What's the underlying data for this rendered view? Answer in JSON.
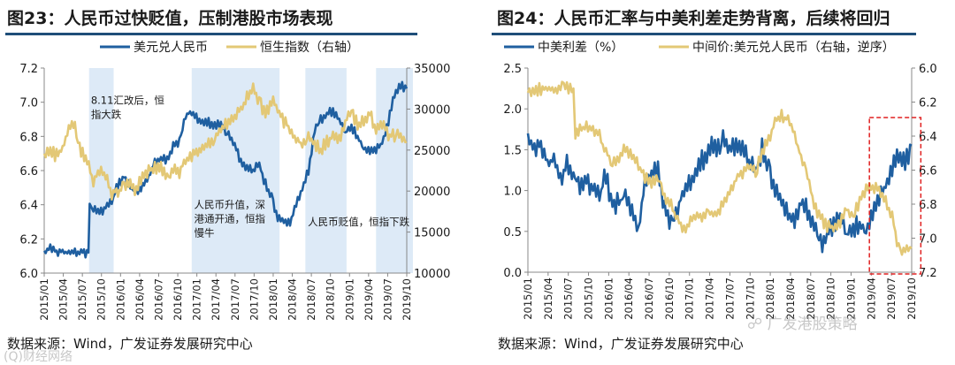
{
  "left": {
    "title": "图23：人民币过快贬值，压制港股市场表现",
    "legend": [
      "美元兑人民币",
      "恒生指数（右轴）"
    ],
    "source": "数据来源：Wind，广发证券发展研究中心",
    "chart_data": {
      "type": "line",
      "title": "人民币过快贬值，压制港股市场表现",
      "colors": {
        "usdcny": "#1f5fa0",
        "hsi": "#e3c876",
        "shade": "#ddeaf7"
      },
      "x_tick_labels": [
        "2015/01",
        "2015/04",
        "2015/07",
        "2015/10",
        "2016/01",
        "2016/04",
        "2016/07",
        "2016/10",
        "2017/01",
        "2017/04",
        "2017/07",
        "2017/10",
        "2018/01",
        "2018/04",
        "2018/07",
        "2018/10",
        "2019/01",
        "2019/04",
        "2019/07",
        "2019/10"
      ],
      "y_left": {
        "min": 6.0,
        "max": 7.2,
        "ticks": [
          "6.0",
          "6.2",
          "6.4",
          "6.6",
          "6.8",
          "7.0",
          "7.2"
        ]
      },
      "y_right": {
        "min": 10000,
        "max": 35000,
        "ticks": [
          "10000",
          "15000",
          "20000",
          "25000",
          "30000",
          "35000"
        ]
      },
      "shaded_periods": [
        [
          7.3,
          11.3
        ],
        [
          24.0,
          38.3
        ],
        [
          42.5,
          49.2
        ],
        [
          54.0,
          60.0
        ]
      ],
      "annotations": [
        {
          "text": [
            "8.11汇改后，恒",
            "指大跌"
          ],
          "t": 7.6,
          "y": 6.99
        },
        {
          "text": [
            "人民币升值，深",
            "港通开通，恒指",
            "慢牛"
          ],
          "t": 24.4,
          "y": 6.38
        },
        {
          "text": [
            "人民币贬值，恒指下跌"
          ],
          "t": 42.9,
          "y": 6.28
        }
      ],
      "series": [
        {
          "name": "美元兑人民币",
          "axis": "left",
          "points": [
            [
              0,
              6.13
            ],
            [
              1,
              6.14
            ],
            [
              2,
              6.13
            ],
            [
              3,
              6.12
            ],
            [
              4,
              6.12
            ],
            [
              5,
              6.13
            ],
            [
              6,
              6.12
            ],
            [
              7.2,
              6.12
            ],
            [
              7.4,
              6.39
            ],
            [
              8,
              6.38
            ],
            [
              9,
              6.36
            ],
            [
              10,
              6.38
            ],
            [
              11,
              6.41
            ],
            [
              12,
              6.52
            ],
            [
              13,
              6.56
            ],
            [
              14,
              6.5
            ],
            [
              15,
              6.47
            ],
            [
              16,
              6.5
            ],
            [
              17,
              6.56
            ],
            [
              18,
              6.65
            ],
            [
              19,
              6.67
            ],
            [
              20,
              6.66
            ],
            [
              21,
              6.75
            ],
            [
              22,
              6.77
            ],
            [
              23,
              6.92
            ],
            [
              24,
              6.95
            ],
            [
              25,
              6.9
            ],
            [
              26,
              6.88
            ],
            [
              27,
              6.88
            ],
            [
              28,
              6.87
            ],
            [
              29,
              6.86
            ],
            [
              30,
              6.8
            ],
            [
              31,
              6.74
            ],
            [
              32,
              6.66
            ],
            [
              33,
              6.62
            ],
            [
              34,
              6.6
            ],
            [
              35,
              6.63
            ],
            [
              36,
              6.52
            ],
            [
              37,
              6.44
            ],
            [
              38,
              6.32
            ],
            [
              39,
              6.3
            ],
            [
              40,
              6.29
            ],
            [
              41,
              6.39
            ],
            [
              42,
              6.5
            ],
            [
              43,
              6.6
            ],
            [
              44,
              6.83
            ],
            [
              45,
              6.9
            ],
            [
              46,
              6.93
            ],
            [
              47,
              6.95
            ],
            [
              48,
              6.9
            ],
            [
              49,
              6.82
            ],
            [
              50,
              6.86
            ],
            [
              51,
              6.8
            ],
            [
              52,
              6.73
            ],
            [
              53,
              6.71
            ],
            [
              54,
              6.72
            ],
            [
              55,
              6.76
            ],
            [
              56,
              6.88
            ],
            [
              57,
              7.05
            ],
            [
              58,
              7.1
            ],
            [
              59,
              7.08
            ]
          ]
        },
        {
          "name": "恒生指数（右轴）",
          "axis": "right",
          "points": [
            [
              0,
              24000
            ],
            [
              1,
              24800
            ],
            [
              2,
              24300
            ],
            [
              3,
              25000
            ],
            [
              4,
              27500
            ],
            [
              5,
              28000
            ],
            [
              6,
              25000
            ],
            [
              7,
              23500
            ],
            [
              8,
              21200
            ],
            [
              9,
              22500
            ],
            [
              10,
              21600
            ],
            [
              11,
              19800
            ],
            [
              12,
              20000
            ],
            [
              13,
              20500
            ],
            [
              14,
              20700
            ],
            [
              15,
              20300
            ],
            [
              16,
              21500
            ],
            [
              17,
              22500
            ],
            [
              18,
              23000
            ],
            [
              19,
              22800
            ],
            [
              20,
              22000
            ],
            [
              21,
              22500
            ],
            [
              22,
              22200
            ],
            [
              23,
              24000
            ],
            [
              24,
              24200
            ],
            [
              25,
              24700
            ],
            [
              26,
              25500
            ],
            [
              27,
              26000
            ],
            [
              28,
              27000
            ],
            [
              29,
              27500
            ],
            [
              30,
              28500
            ],
            [
              31,
              29000
            ],
            [
              32,
              30000
            ],
            [
              33,
              31500
            ],
            [
              34,
              32800
            ],
            [
              35,
              31000
            ],
            [
              36,
              29500
            ],
            [
              37,
              31000
            ],
            [
              38,
              30000
            ],
            [
              39,
              28500
            ],
            [
              40,
              27500
            ],
            [
              41,
              26500
            ],
            [
              42,
              25500
            ],
            [
              43,
              26500
            ],
            [
              44,
              26000
            ],
            [
              45,
              25000
            ],
            [
              46,
              26000
            ],
            [
              47,
              26800
            ],
            [
              48,
              26000
            ],
            [
              49,
              28500
            ],
            [
              50,
              29500
            ],
            [
              51,
              28000
            ],
            [
              52,
              28800
            ],
            [
              53,
              29500
            ],
            [
              54,
              27500
            ],
            [
              55,
              28000
            ],
            [
              56,
              27000
            ],
            [
              57,
              26500
            ],
            [
              58,
              27000
            ],
            [
              59,
              26000
            ]
          ]
        }
      ]
    }
  },
  "right": {
    "title": "图24：人民币汇率与中美利差走势背离，后续将回归",
    "legend": [
      "中美利差（%）",
      "中间价:美元兑人民币（右轴，逆序）"
    ],
    "source": "数据来源：Wind，广发证券发展研究中心",
    "chart_data": {
      "type": "line",
      "title": "人民币汇率与中美利差走势背离，后续将回归",
      "colors": {
        "spread": "#1f5fa0",
        "cny": "#e3c876",
        "box": "#e02020"
      },
      "x_tick_labels": [
        "2015/01",
        "2015/04",
        "2015/07",
        "2015/10",
        "2016/01",
        "2016/04",
        "2016/07",
        "2016/10",
        "2017/01",
        "2017/04",
        "2017/07",
        "2017/10",
        "2018/01",
        "2018/04",
        "2018/07",
        "2018/10",
        "2019/01",
        "2019/04",
        "2019/07",
        "2019/10"
      ],
      "y_left": {
        "min": 0.0,
        "max": 2.5,
        "ticks": [
          "0.0",
          "0.5",
          "1.0",
          "1.5",
          "2.0",
          "2.5"
        ]
      },
      "y_right": {
        "min": 6.0,
        "max": 7.2,
        "inverted": true,
        "ticks": [
          "6.0",
          "6.2",
          "6.4",
          "6.6",
          "6.8",
          "7.0",
          "7.2"
        ]
      },
      "highlight_box": [
        52.5,
        60.0
      ],
      "series": [
        {
          "name": "中美利差（%）",
          "axis": "left",
          "points": [
            [
              0,
              1.7
            ],
            [
              1,
              1.45
            ],
            [
              2,
              1.6
            ],
            [
              3,
              1.3
            ],
            [
              4,
              1.4
            ],
            [
              5,
              1.15
            ],
            [
              6,
              1.35
            ],
            [
              7,
              1.2
            ],
            [
              8,
              1.05
            ],
            [
              9,
              1.15
            ],
            [
              10,
              1.0
            ],
            [
              11,
              0.9
            ],
            [
              12,
              1.2
            ],
            [
              13,
              0.8
            ],
            [
              14,
              0.85
            ],
            [
              15,
              0.95
            ],
            [
              16,
              0.7
            ],
            [
              17,
              0.5
            ],
            [
              18,
              1.1
            ],
            [
              19,
              1.2
            ],
            [
              20,
              1.25
            ],
            [
              21,
              0.8
            ],
            [
              22,
              0.6
            ],
            [
              23,
              0.75
            ],
            [
              24,
              1.05
            ],
            [
              25,
              1.1
            ],
            [
              26,
              1.25
            ],
            [
              27,
              1.4
            ],
            [
              28,
              1.55
            ],
            [
              29,
              1.5
            ],
            [
              30,
              1.6
            ],
            [
              31,
              1.45
            ],
            [
              32,
              1.6
            ],
            [
              33,
              1.55
            ],
            [
              34,
              1.35
            ],
            [
              35,
              1.2
            ],
            [
              36,
              1.5
            ],
            [
              37,
              1.25
            ],
            [
              38,
              1.0
            ],
            [
              39,
              0.85
            ],
            [
              40,
              0.7
            ],
            [
              41,
              0.55
            ],
            [
              42,
              0.9
            ],
            [
              43,
              0.75
            ],
            [
              44,
              0.55
            ],
            [
              45,
              0.35
            ],
            [
              46,
              0.45
            ],
            [
              47,
              0.6
            ],
            [
              48,
              0.7
            ],
            [
              49,
              0.45
            ],
            [
              50,
              0.55
            ],
            [
              51,
              0.6
            ],
            [
              52,
              0.5
            ],
            [
              53,
              0.7
            ],
            [
              54,
              0.9
            ],
            [
              55,
              1.05
            ],
            [
              56,
              1.25
            ],
            [
              57,
              1.45
            ],
            [
              58,
              1.35
            ],
            [
              59,
              1.55
            ]
          ]
        },
        {
          "name": "中间价:美元兑人民币（右轴，逆序）",
          "axis": "right",
          "points": [
            [
              0,
              6.12
            ],
            [
              1,
              6.13
            ],
            [
              2,
              6.12
            ],
            [
              3,
              6.11
            ],
            [
              4,
              6.12
            ],
            [
              5,
              6.11
            ],
            [
              6,
              6.12
            ],
            [
              7,
              6.12
            ],
            [
              7.3,
              6.38
            ],
            [
              8,
              6.36
            ],
            [
              9,
              6.34
            ],
            [
              10,
              6.35
            ],
            [
              11,
              6.4
            ],
            [
              12,
              6.5
            ],
            [
              13,
              6.55
            ],
            [
              14,
              6.52
            ],
            [
              15,
              6.48
            ],
            [
              16,
              6.5
            ],
            [
              17,
              6.57
            ],
            [
              18,
              6.65
            ],
            [
              19,
              6.67
            ],
            [
              20,
              6.66
            ],
            [
              21,
              6.75
            ],
            [
              22,
              6.8
            ],
            [
              23,
              6.9
            ],
            [
              24,
              6.95
            ],
            [
              25,
              6.89
            ],
            [
              26,
              6.87
            ],
            [
              27,
              6.88
            ],
            [
              28,
              6.86
            ],
            [
              29,
              6.85
            ],
            [
              30,
              6.8
            ],
            [
              31,
              6.73
            ],
            [
              32,
              6.65
            ],
            [
              33,
              6.62
            ],
            [
              34,
              6.58
            ],
            [
              35,
              6.62
            ],
            [
              36,
              6.5
            ],
            [
              37,
              6.42
            ],
            [
              38,
              6.31
            ],
            [
              39,
              6.28
            ],
            [
              40,
              6.3
            ],
            [
              41,
              6.4
            ],
            [
              42,
              6.52
            ],
            [
              43,
              6.62
            ],
            [
              44,
              6.82
            ],
            [
              45,
              6.88
            ],
            [
              46,
              6.93
            ],
            [
              47,
              6.94
            ],
            [
              48,
              6.9
            ],
            [
              49,
              6.83
            ],
            [
              50,
              6.86
            ],
            [
              51,
              6.78
            ],
            [
              52,
              6.72
            ],
            [
              53,
              6.7
            ],
            [
              54,
              6.72
            ],
            [
              55,
              6.77
            ],
            [
              56,
              6.88
            ],
            [
              57,
              7.05
            ],
            [
              58,
              7.08
            ],
            [
              59,
              7.06
            ]
          ]
        }
      ]
    }
  },
  "watermarks": [
    "广发港股策略",
    "(Q)财经网络"
  ]
}
